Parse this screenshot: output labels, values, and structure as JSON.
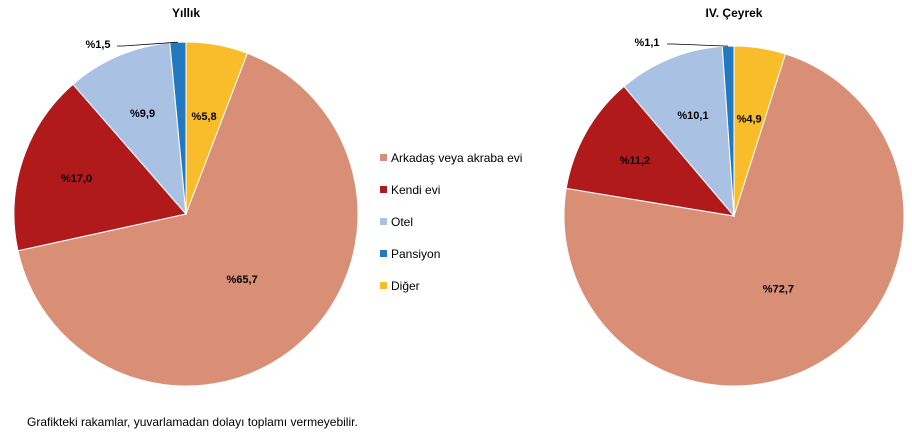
{
  "chart_data": [
    {
      "type": "pie",
      "title": "Yıllık",
      "categories": [
        "Arkadaş veya akraba evi",
        "Kendi evi",
        "Otel",
        "Pansiyon",
        "Diğer"
      ],
      "values": [
        65.7,
        17.0,
        9.9,
        1.5,
        5.8
      ],
      "labels": [
        "%65,7",
        "%17,0",
        "%9,9",
        "%1,5",
        "%5,8"
      ]
    },
    {
      "type": "pie",
      "title": "IV. Çeyrek",
      "categories": [
        "Arkadaş veya akraba evi",
        "Kendi evi",
        "Otel",
        "Pansiyon",
        "Diğer"
      ],
      "values": [
        72.7,
        11.2,
        10.1,
        1.1,
        4.9
      ],
      "labels": [
        "%72,7",
        "%11,2",
        "%10,1",
        "%1,1",
        "%4,9"
      ]
    }
  ],
  "legend": {
    "position": "center",
    "items": [
      "Arkadaş veya akraba evi",
      "Kendi evi",
      "Otel",
      "Pansiyon",
      "Diğer"
    ]
  },
  "colors": [
    "#D98E76",
    "#B01A1A",
    "#A9C1E3",
    "#2379C0",
    "#F9BC2B"
  ],
  "footnote": "Grafikteki rakamlar, yuvarlamadan dolayı toplamı vermeyebilir."
}
